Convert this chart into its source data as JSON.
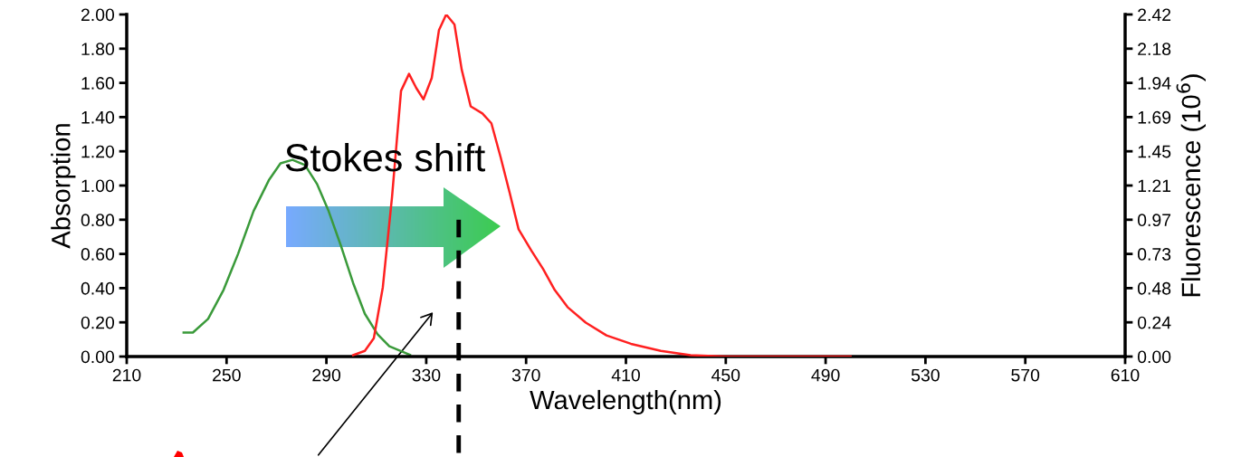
{
  "chart_data": {
    "type": "line",
    "xlabel": "Wavelength(nm)",
    "ylabel": "Absorption",
    "y2label": "Fluorescence (10$^{6}$)",
    "xlim": [
      210,
      610
    ],
    "xticks": [
      210,
      250,
      290,
      330,
      370,
      410,
      450,
      490,
      530,
      570,
      610
    ],
    "ylim": [
      0,
      2.0
    ],
    "yticks": [
      {
        "value": 0,
        "label": "0.00"
      },
      {
        "value": 0.2,
        "label": "0.20"
      },
      {
        "value": 0.4,
        "label": "0.40"
      },
      {
        "value": 0.6,
        "label": "0.60"
      },
      {
        "value": 0.8,
        "label": "0.80"
      },
      {
        "value": 1.0,
        "label": "1.00"
      },
      {
        "value": 1.2,
        "label": "1.20"
      },
      {
        "value": 1.4,
        "label": "1.40"
      },
      {
        "value": 1.6,
        "label": "1.60"
      },
      {
        "value": 1.8,
        "label": "1.80"
      },
      {
        "value": 2.0,
        "label": "2.00"
      }
    ],
    "y2lim": [
      0,
      2.42
    ],
    "y2ticks": [
      {
        "value": 0,
        "label": "0.00"
      },
      {
        "value": 0.242,
        "label": "0.24"
      },
      {
        "value": 0.484,
        "label": "0.48"
      },
      {
        "value": 0.726,
        "label": "0.73"
      },
      {
        "value": 0.968,
        "label": "0.97"
      },
      {
        "value": 1.21,
        "label": "1.21"
      },
      {
        "value": 1.452,
        "label": "1.45"
      },
      {
        "value": 1.694,
        "label": "1.69"
      },
      {
        "value": 1.936,
        "label": "1.94"
      },
      {
        "value": 2.178,
        "label": "2.18"
      },
      {
        "value": 2.42,
        "label": "2.42"
      }
    ],
    "series": [
      {
        "color": "#3a9a3a",
        "x": [
          232.8,
          236.5,
          242.6,
          248.8,
          254.6,
          260.8,
          266.9,
          271.6,
          276.4,
          281.4,
          286.2,
          290.9,
          296.0,
          300.7,
          305.4,
          310.5,
          315.2,
          323.5
        ],
        "values": [
          0.14,
          0.14,
          0.22,
          0.39,
          0.6,
          0.85,
          1.03,
          1.13,
          1.15,
          1.12,
          1.01,
          0.85,
          0.64,
          0.43,
          0.25,
          0.13,
          0.06,
          0.01
        ]
      },
      {
        "color": "#ff2020",
        "axis": "y2",
        "x": [
          300.7,
          305.4,
          309.0,
          312.6,
          316.3,
          319.9,
          323.1,
          326.0,
          328.9,
          332.2,
          335.1,
          338.0,
          341.3,
          344.2,
          347.8,
          352.5,
          356.1,
          359.8,
          363.4,
          367.0,
          372.1,
          376.8,
          381.5,
          386.6,
          393.9,
          402.2,
          412.0,
          424.0,
          435.9,
          450.0,
          500.0
        ],
        "values": [
          0.01,
          0.04,
          0.13,
          0.49,
          1.13,
          1.88,
          2.0,
          1.9,
          1.82,
          1.97,
          2.31,
          2.42,
          2.35,
          2.03,
          1.77,
          1.72,
          1.65,
          1.41,
          1.16,
          0.9,
          0.75,
          0.62,
          0.47,
          0.35,
          0.24,
          0.15,
          0.09,
          0.04,
          0.01,
          0.0,
          0.0
        ]
      }
    ],
    "ref_lines": [
      {
        "axis": "x",
        "value": 343,
        "color": "#000000",
        "line_style": "dashed"
      }
    ],
    "annotations": [
      "Stokes shift"
    ],
    "grid": false,
    "legend": false,
    "marker": "none",
    "line_style": "solid"
  }
}
